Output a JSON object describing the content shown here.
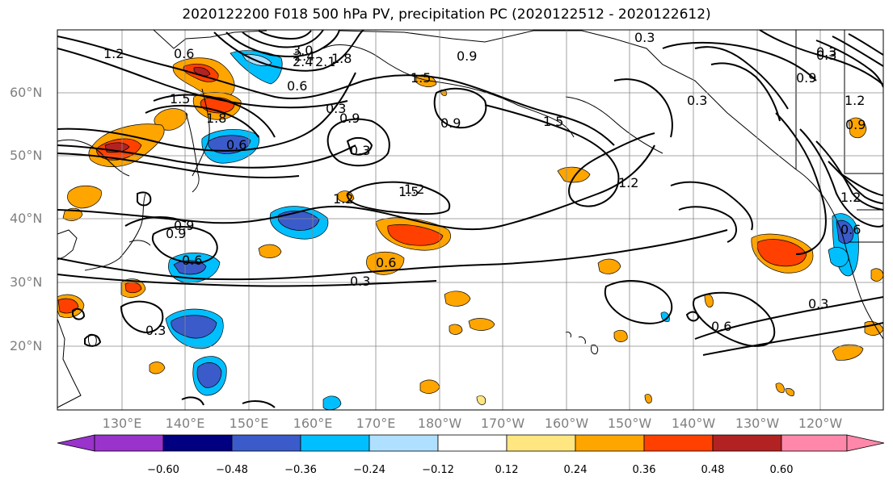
{
  "title": "2020122200 F018 500 hPa PV, precipitation PC (2020122512 - 2020122612)",
  "lat_labels": [
    "60°N",
    "50°N",
    "40°N",
    "30°N",
    "20°N"
  ],
  "lon_labels": [
    "130°E",
    "140°E",
    "150°E",
    "160°E",
    "170°E",
    "180°W",
    "170°W",
    "160°W",
    "150°W",
    "140°W",
    "130°W",
    "120°W"
  ],
  "colorbar": {
    "ticks": [
      "−0.60",
      "−0.48",
      "−0.36",
      "−0.24",
      "−0.12",
      "0.12",
      "0.24",
      "0.36",
      "0.48",
      "0.60"
    ],
    "colors": [
      "#9933cc",
      "#000080",
      "#3a5bc9",
      "#00bfff",
      "#b0e0ff",
      "#ffffff",
      "#ffe680",
      "#ffa500",
      "#ff4000",
      "#b22222",
      "#ff88aa"
    ]
  },
  "contour_labels": [
    "1.2",
    "0.6",
    "3.0",
    "2.4",
    "2.1",
    "1.8",
    "0.9",
    "0.3",
    "1.5",
    "0.6",
    "0.3",
    "0.9",
    "1.5",
    "0.3",
    "1.2",
    "1.5",
    "0.6",
    "0.3",
    "0.9",
    "0.9",
    "0.6",
    "0.3",
    "0.6",
    "0.3",
    "0.3",
    "1.8",
    "1.2",
    "0.9",
    "1.2",
    "0.6",
    "0.3",
    "1.5",
    "2.4",
    "1.2",
    "0.3",
    "1.2",
    "0.9",
    "0.9",
    "0.6"
  ]
}
